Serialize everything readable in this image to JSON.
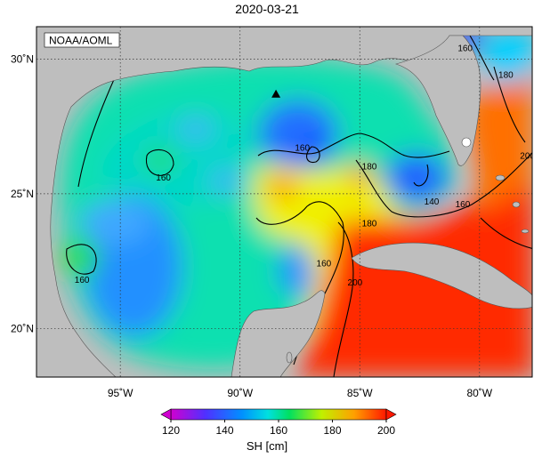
{
  "title": "2020-03-21",
  "source_label": "NOAA/AOML",
  "map": {
    "lon_range": [
      -98.5,
      -77.8
    ],
    "lat_range": [
      18.2,
      31.2
    ],
    "lon_ticks": [
      {
        "value": -95,
        "label": "95˚W"
      },
      {
        "value": -90,
        "label": "90˚W"
      },
      {
        "value": -85,
        "label": "85˚W"
      },
      {
        "value": -80,
        "label": "80˚W"
      }
    ],
    "lat_ticks": [
      {
        "value": 30,
        "label": "30˚N"
      },
      {
        "value": 25,
        "label": "25˚N"
      },
      {
        "value": 20,
        "label": "20˚N"
      }
    ],
    "grid": "dotted",
    "land_color": "#bebebe",
    "marker": {
      "shape": "triangle",
      "lon": -88.5,
      "lat": 28.7,
      "color": "#000000"
    }
  },
  "field": {
    "variable": "SH [cm]",
    "min": 120,
    "max": 200,
    "contour_interval_major": 20,
    "contour_labels": [
      {
        "text": "160",
        "lon": -93.2,
        "lat": 25.5
      },
      {
        "text": "160",
        "lon": -96.6,
        "lat": 21.7
      },
      {
        "text": "160",
        "lon": -87.4,
        "lat": 26.6
      },
      {
        "text": "180",
        "lon": -84.6,
        "lat": 25.9
      },
      {
        "text": "180",
        "lon": -84.6,
        "lat": 23.8
      },
      {
        "text": "160",
        "lon": -86.5,
        "lat": 22.3
      },
      {
        "text": "200",
        "lon": -85.2,
        "lat": 21.6
      },
      {
        "text": "160",
        "lon": -80.6,
        "lat": 30.3
      },
      {
        "text": "180",
        "lon": -78.9,
        "lat": 29.3
      },
      {
        "text": "200",
        "lon": -78.0,
        "lat": 26.3
      },
      {
        "text": "140",
        "lon": -82.0,
        "lat": 24.6
      },
      {
        "text": "160",
        "lon": -80.7,
        "lat": 24.5
      }
    ]
  },
  "colorbar": {
    "title": "SH [cm]",
    "ticks": [
      "120",
      "140",
      "160",
      "180",
      "200"
    ],
    "colors": [
      "#d000d0",
      "#2020ff",
      "#00d0ff",
      "#00e070",
      "#c8f000",
      "#ffa000",
      "#ff2000"
    ]
  }
}
